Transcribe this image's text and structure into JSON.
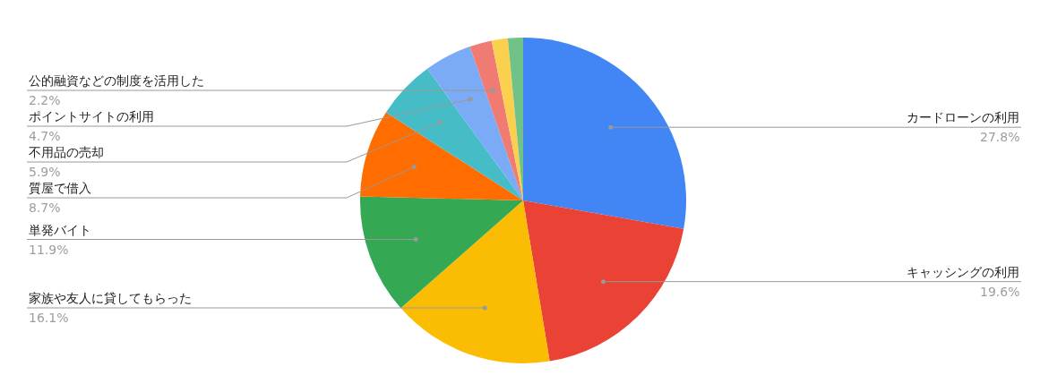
{
  "chart_data": {
    "type": "pie",
    "categories": [
      "カードローンの利用",
      "キャッシングの利用",
      "家族や友人に貸してもらった",
      "単発バイト",
      "質屋で借入",
      "不用品の売却",
      "ポイントサイトの利用",
      "公的融資などの制度を活用した",
      null,
      null
    ],
    "values": [
      27.8,
      19.6,
      16.1,
      11.9,
      8.7,
      5.9,
      4.7,
      2.2,
      1.6,
      1.5
    ],
    "value_labels": [
      "27.8%",
      "19.6%",
      "16.1%",
      "11.9%",
      "8.7%",
      "5.9%",
      "4.7%",
      "2.2%",
      null,
      null
    ],
    "colors": [
      "#4285f4",
      "#ea4335",
      "#fbbc04",
      "#34a853",
      "#ff6d01",
      "#46bdc6",
      "#7baaf7",
      "#f07b72",
      "#fcd04f",
      "#71c287"
    ]
  }
}
